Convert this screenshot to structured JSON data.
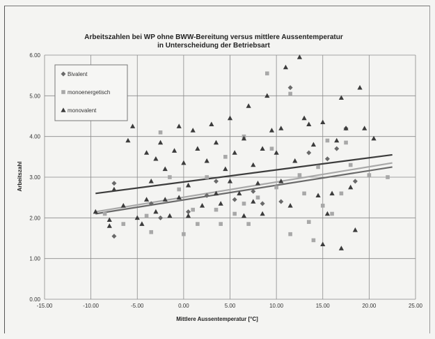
{
  "chart_data": {
    "type": "scatter",
    "title": "Arbeitszahlen bei WP ohne BWW-Bereitung  versus mittlere Aussentemperatur",
    "subtitle": "in Unterscheidung der Betriebsart",
    "xlabel": "Mittlere Aussentemperatur [°C]",
    "ylabel": "Arbeitszahl",
    "xlim": [
      -15,
      25
    ],
    "ylim": [
      0,
      6
    ],
    "x_ticks": [
      "-15.00",
      "-10.00",
      "-5.00",
      "0.00",
      "5.00",
      "10.00",
      "15.00",
      "20.00",
      "25.00"
    ],
    "y_ticks": [
      "0.00",
      "1.00",
      "2.00",
      "3.00",
      "4.00",
      "5.00",
      "6.00"
    ],
    "grid": true,
    "legend_position": "top-left",
    "series": [
      {
        "name": "Bivalent",
        "marker": "diamond",
        "color": "#6a6a6a",
        "points": [
          [
            -7.5,
            1.55
          ],
          [
            -7.5,
            2.85
          ],
          [
            -3.5,
            2.35
          ],
          [
            -2.5,
            2.0
          ],
          [
            0.5,
            2.15
          ],
          [
            2.5,
            2.55
          ],
          [
            3.5,
            2.9
          ],
          [
            5.5,
            2.45
          ],
          [
            7.5,
            2.65
          ],
          [
            8.5,
            2.35
          ],
          [
            10.5,
            2.4
          ],
          [
            11.5,
            5.2
          ],
          [
            13.5,
            3.6
          ],
          [
            15.5,
            3.45
          ],
          [
            16.5,
            3.7
          ],
          [
            17.5,
            4.2
          ],
          [
            18.5,
            2.9
          ]
        ],
        "trendline": [
          [
            -9.5,
            2.1
          ],
          [
            22.5,
            3.25
          ]
        ]
      },
      {
        "name": "monoenergetisch",
        "marker": "square",
        "color": "#a8a8a8",
        "points": [
          [
            -8.5,
            2.1
          ],
          [
            -6.5,
            1.85
          ],
          [
            -4.0,
            2.05
          ],
          [
            -3.5,
            1.65
          ],
          [
            -2.5,
            4.1
          ],
          [
            -1.5,
            3.0
          ],
          [
            -0.5,
            2.7
          ],
          [
            0.0,
            1.6
          ],
          [
            1.0,
            2.2
          ],
          [
            1.5,
            1.85
          ],
          [
            2.5,
            3.0
          ],
          [
            3.5,
            2.2
          ],
          [
            4.0,
            1.85
          ],
          [
            4.5,
            3.5
          ],
          [
            5.5,
            2.1
          ],
          [
            6.5,
            2.35
          ],
          [
            6.5,
            4.0
          ],
          [
            7.0,
            1.85
          ],
          [
            8.0,
            2.5
          ],
          [
            9.0,
            5.55
          ],
          [
            9.5,
            3.7
          ],
          [
            10.0,
            2.75
          ],
          [
            11.5,
            1.6
          ],
          [
            11.5,
            5.05
          ],
          [
            12.5,
            3.05
          ],
          [
            13.0,
            2.6
          ],
          [
            13.5,
            1.9
          ],
          [
            14.0,
            1.45
          ],
          [
            14.5,
            3.25
          ],
          [
            15.0,
            2.3
          ],
          [
            15.5,
            3.9
          ],
          [
            16.0,
            2.1
          ],
          [
            17.0,
            2.6
          ],
          [
            17.5,
            3.85
          ],
          [
            18.0,
            3.3
          ],
          [
            20.0,
            3.05
          ],
          [
            22.0,
            3.0
          ]
        ],
        "trendline": [
          [
            -9.5,
            2.15
          ],
          [
            22.5,
            3.35
          ]
        ]
      },
      {
        "name": "monovalent",
        "marker": "triangle",
        "color": "#3c3c3c",
        "points": [
          [
            -9.5,
            2.15
          ],
          [
            -8.0,
            1.95
          ],
          [
            -8.0,
            1.8
          ],
          [
            -7.5,
            2.7
          ],
          [
            -6.5,
            2.3
          ],
          [
            -6.0,
            3.9
          ],
          [
            -5.5,
            4.25
          ],
          [
            -5.0,
            2.0
          ],
          [
            -4.5,
            1.85
          ],
          [
            -4.0,
            2.45
          ],
          [
            -4.0,
            3.6
          ],
          [
            -3.5,
            2.9
          ],
          [
            -3.0,
            3.45
          ],
          [
            -3.0,
            2.15
          ],
          [
            -2.5,
            3.85
          ],
          [
            -2.0,
            2.45
          ],
          [
            -2.0,
            3.2
          ],
          [
            -1.5,
            2.05
          ],
          [
            -1.0,
            3.65
          ],
          [
            -0.5,
            4.25
          ],
          [
            -0.5,
            2.5
          ],
          [
            0.0,
            3.35
          ],
          [
            0.5,
            2.05
          ],
          [
            0.5,
            2.8
          ],
          [
            1.0,
            4.15
          ],
          [
            1.5,
            3.7
          ],
          [
            2.0,
            2.3
          ],
          [
            2.5,
            3.4
          ],
          [
            3.0,
            4.3
          ],
          [
            3.5,
            2.6
          ],
          [
            3.5,
            3.85
          ],
          [
            4.0,
            2.35
          ],
          [
            4.5,
            3.2
          ],
          [
            5.0,
            4.45
          ],
          [
            5.0,
            2.9
          ],
          [
            5.5,
            3.6
          ],
          [
            6.0,
            2.6
          ],
          [
            6.5,
            2.05
          ],
          [
            6.5,
            3.95
          ],
          [
            7.0,
            4.75
          ],
          [
            7.5,
            2.4
          ],
          [
            7.5,
            3.3
          ],
          [
            8.0,
            2.85
          ],
          [
            8.5,
            2.1
          ],
          [
            8.5,
            3.7
          ],
          [
            9.0,
            5.0
          ],
          [
            9.5,
            4.15
          ],
          [
            10.0,
            3.6
          ],
          [
            10.5,
            2.9
          ],
          [
            10.5,
            4.2
          ],
          [
            11.0,
            5.7
          ],
          [
            11.5,
            2.3
          ],
          [
            12.0,
            3.4
          ],
          [
            12.5,
            5.95
          ],
          [
            13.0,
            4.45
          ],
          [
            13.5,
            4.3
          ],
          [
            14.0,
            3.8
          ],
          [
            14.5,
            2.55
          ],
          [
            15.0,
            1.35
          ],
          [
            15.0,
            4.35
          ],
          [
            15.5,
            2.1
          ],
          [
            16.0,
            2.6
          ],
          [
            16.5,
            3.9
          ],
          [
            17.0,
            4.95
          ],
          [
            17.0,
            1.25
          ],
          [
            17.5,
            4.2
          ],
          [
            18.0,
            2.75
          ],
          [
            18.5,
            1.7
          ],
          [
            19.0,
            5.2
          ],
          [
            19.5,
            4.2
          ],
          [
            20.5,
            3.95
          ]
        ],
        "trendline": [
          [
            -9.5,
            2.6
          ],
          [
            22.5,
            3.55
          ]
        ]
      }
    ]
  }
}
